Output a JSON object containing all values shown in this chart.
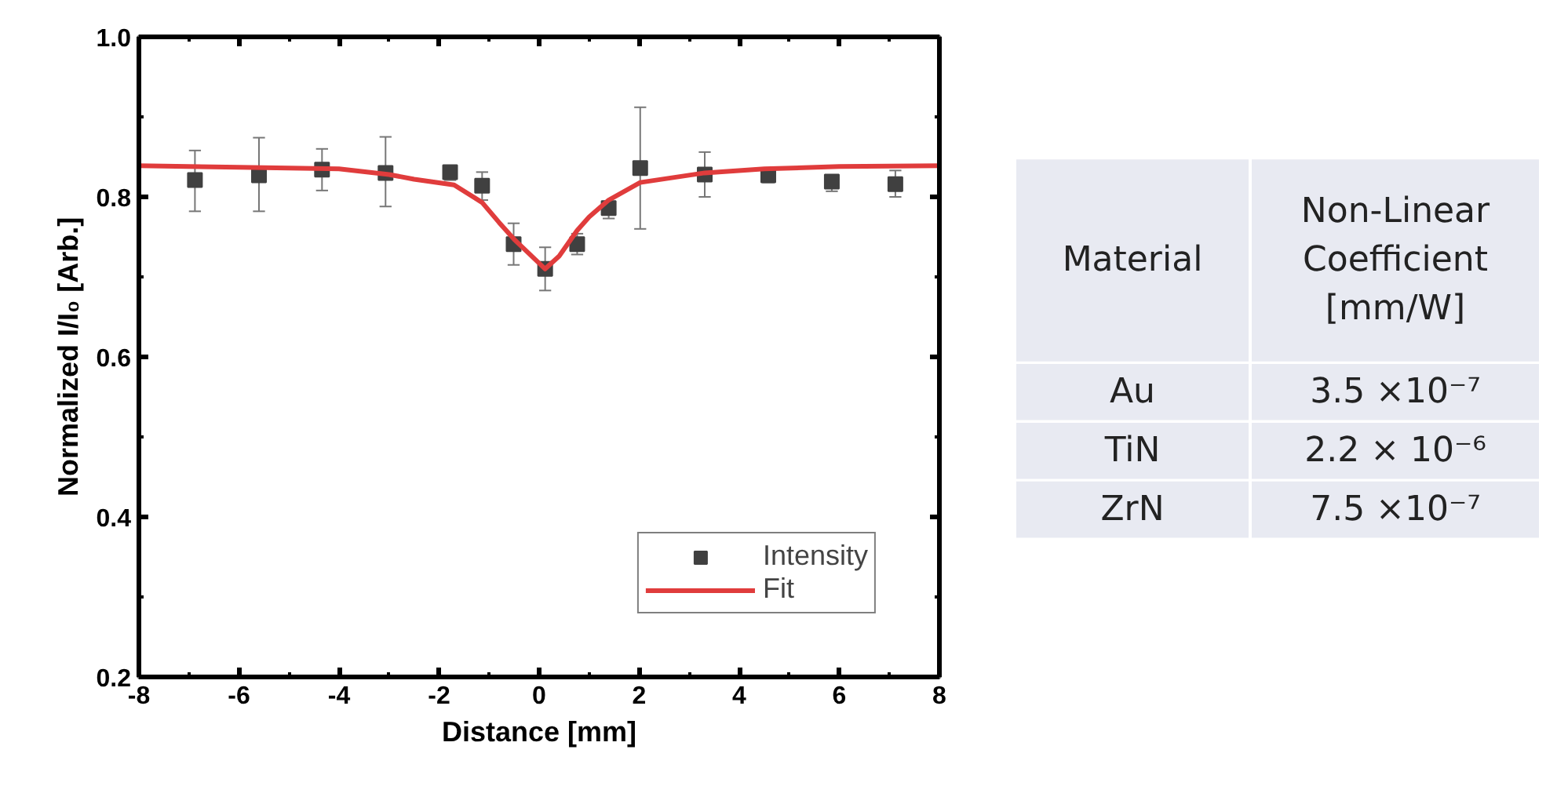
{
  "chart_data": [
    {
      "type": "scatter",
      "xlabel": "Distance [mm]",
      "ylabel": "Normalized I/I₀ [Arb.]",
      "xlim": [
        -8,
        8
      ],
      "xticks": [
        -8,
        -6,
        -4,
        -2,
        0,
        2,
        4,
        6,
        8
      ],
      "ylim": [
        0.2,
        1.0
      ],
      "yticks": [
        0.2,
        0.4,
        0.6,
        0.8,
        {
          "value": 1,
          "label": "1.0"
        }
      ],
      "grid": false,
      "legend": "bottom right",
      "series": [
        {
          "name": "Intensity",
          "type": "scatter",
          "color": "#404040",
          "marker": "square",
          "x": [
            -6.88,
            -5.6,
            -4.34,
            -3.07,
            -1.78,
            -1.14,
            -0.51,
            0.12,
            0.76,
            1.39,
            2.02,
            3.31,
            4.58,
            5.85,
            7.12
          ],
          "values": [
            0.821,
            0.827,
            0.834,
            0.83,
            0.831,
            0.814,
            0.741,
            0.71,
            0.741,
            0.786,
            0.836,
            0.828,
            0.827,
            0.819,
            0.816
          ],
          "errors": [
            [
              0.782,
              0.858
            ],
            [
              0.782,
              0.874
            ],
            [
              0.808,
              0.86
            ],
            [
              0.788,
              0.875
            ],
            [
              0.821,
              0.839
            ],
            [
              0.796,
              0.831
            ],
            [
              0.715,
              0.767
            ],
            [
              0.683,
              0.737
            ],
            [
              0.728,
              0.754
            ],
            [
              0.773,
              0.793
            ],
            [
              0.76,
              0.912
            ],
            [
              0.8,
              0.856
            ],
            [
              0.818,
              0.832
            ],
            [
              0.807,
              0.827
            ],
            [
              0.8,
              0.833
            ]
          ]
        },
        {
          "name": "Fit",
          "type": "line",
          "color": "#e03c3c",
          "marker": "none",
          "line_style": "solid",
          "x": [
            -8,
            -6,
            -4,
            -3,
            -2.5,
            -1.7,
            -1.14,
            -0.8,
            -0.5,
            0.12,
            0.4,
            0.76,
            1.0,
            1.39,
            2.02,
            3.31,
            4.5,
            6,
            8
          ],
          "values": [
            0.839,
            0.837,
            0.835,
            0.828,
            0.822,
            0.815,
            0.793,
            0.768,
            0.747,
            0.71,
            0.726,
            0.758,
            0.775,
            0.796,
            0.818,
            0.83,
            0.835,
            0.838,
            0.839
          ]
        }
      ]
    },
    {
      "type": "other",
      "categories": [
        "Material",
        "Non-Linear Coefficient [mm/W]"
      ],
      "y_categories": [
        "Au",
        "TiN",
        "ZrN"
      ],
      "cell_labels": [
        [
          "3.5 ×10⁻⁷"
        ],
        [
          "2.2 × 10⁻⁶"
        ],
        [
          "7.5 ×10⁻⁷"
        ]
      ]
    }
  ]
}
